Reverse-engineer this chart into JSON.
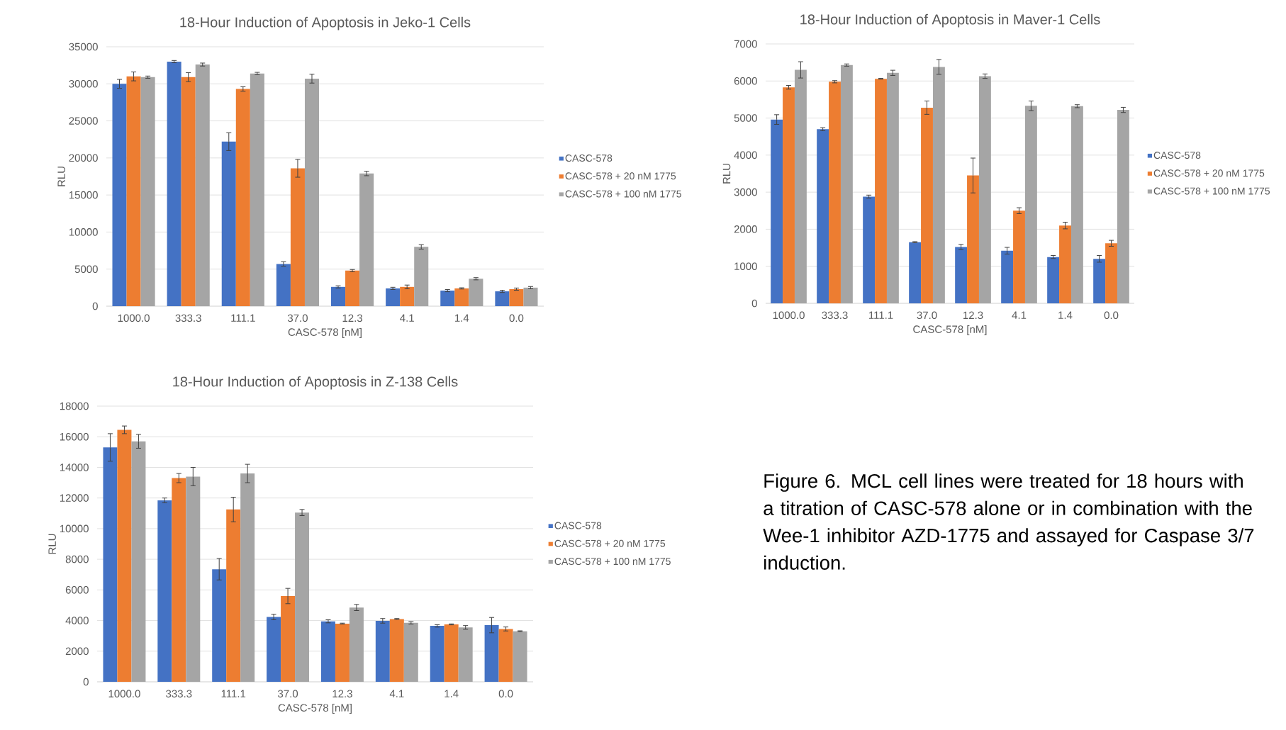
{
  "chart_data": [
    {
      "type": "bar",
      "title": "18-Hour Induction of Apoptosis in Jeko-1 Cells",
      "xlabel": "CASC-578 [nM]",
      "ylabel": "RLU",
      "categories": [
        "1000.0",
        "333.3",
        "111.1",
        "37.0",
        "12.3",
        "4.1",
        "1.4",
        "0.0"
      ],
      "ylim": [
        0,
        35000
      ],
      "yticks": [
        0,
        5000,
        10000,
        15000,
        20000,
        25000,
        30000,
        35000
      ],
      "grid": "y",
      "legend": "right",
      "series": [
        {
          "name": "CASC-578",
          "color": "#4472c4",
          "values": [
            30000,
            33000,
            22200,
            5700,
            2600,
            2400,
            2100,
            2000
          ],
          "errors": [
            600,
            150,
            1200,
            300,
            150,
            150,
            150,
            150
          ]
        },
        {
          "name": "CASC-578 + 20 nM 1775",
          "color": "#ed7d31",
          "values": [
            31000,
            30900,
            29300,
            18600,
            4800,
            2600,
            2400,
            2300
          ],
          "errors": [
            600,
            600,
            300,
            1200,
            150,
            250,
            80,
            150
          ]
        },
        {
          "name": "CASC-578 + 100 nM 1775",
          "color": "#a5a5a5",
          "values": [
            30900,
            32600,
            31400,
            30700,
            17900,
            8000,
            3700,
            2500
          ],
          "errors": [
            150,
            200,
            150,
            600,
            300,
            300,
            150,
            150
          ]
        }
      ]
    },
    {
      "type": "bar",
      "title": "18-Hour Induction of Apoptosis in Maver-1 Cells",
      "xlabel": "CASC-578 [nM]",
      "ylabel": "RLU",
      "categories": [
        "1000.0",
        "333.3",
        "111.1",
        "37.0",
        "12.3",
        "4.1",
        "1.4",
        "0.0"
      ],
      "ylim": [
        0,
        7000
      ],
      "yticks": [
        0,
        1000,
        2000,
        3000,
        4000,
        5000,
        6000,
        7000
      ],
      "grid": "y",
      "legend": "right",
      "series": [
        {
          "name": "CASC-578",
          "color": "#4472c4",
          "values": [
            4960,
            4700,
            2880,
            1650,
            1520,
            1420,
            1250,
            1200
          ],
          "errors": [
            130,
            40,
            40,
            15,
            70,
            90,
            40,
            90
          ]
        },
        {
          "name": "CASC-578 + 20 nM 1775",
          "color": "#ed7d31",
          "values": [
            5830,
            5980,
            6060,
            5280,
            3450,
            2500,
            2100,
            1620
          ],
          "errors": [
            50,
            30,
            10,
            180,
            470,
            80,
            90,
            80
          ]
        },
        {
          "name": "CASC-578 + 100 nM 1775",
          "color": "#a5a5a5",
          "values": [
            6300,
            6430,
            6220,
            6380,
            6130,
            5330,
            5320,
            5220
          ],
          "errors": [
            220,
            30,
            70,
            200,
            60,
            130,
            40,
            70
          ]
        }
      ]
    },
    {
      "type": "bar",
      "title": "18-Hour Induction of Apoptosis in Z-138 Cells",
      "xlabel": "CASC-578 [nM]",
      "ylabel": "RLU",
      "categories": [
        "1000.0",
        "333.3",
        "111.1",
        "37.0",
        "12.3",
        "4.1",
        "1.4",
        "0.0"
      ],
      "ylim": [
        0,
        18000
      ],
      "yticks": [
        0,
        2000,
        4000,
        6000,
        8000,
        10000,
        12000,
        14000,
        16000,
        18000
      ],
      "grid": "y",
      "legend": "right",
      "series": [
        {
          "name": "CASC-578",
          "color": "#4472c4",
          "values": [
            15300,
            11850,
            7350,
            4230,
            3950,
            3980,
            3650,
            3700
          ],
          "errors": [
            900,
            150,
            700,
            180,
            100,
            150,
            80,
            500
          ]
        },
        {
          "name": "CASC-578 + 20 nM 1775",
          "color": "#ed7d31",
          "values": [
            16450,
            13300,
            11250,
            5600,
            3800,
            4100,
            3750,
            3450
          ],
          "errors": [
            250,
            300,
            800,
            500,
            30,
            30,
            30,
            130
          ]
        },
        {
          "name": "CASC-578 + 100 nM 1775",
          "color": "#a5a5a5",
          "values": [
            15700,
            13400,
            13600,
            11050,
            4850,
            3850,
            3550,
            3300
          ],
          "errors": [
            450,
            600,
            600,
            200,
            200,
            80,
            120,
            30
          ]
        }
      ]
    },
    {
      "type": "other",
      "annotations": [
        "Figure 6.  MCL cell lines were treated for 18 hours with a titration of CASC-578 alone or in combination with the Wee-1 inhibitor AZD-1775 and assayed for Caspase 3/7 induction."
      ]
    }
  ]
}
